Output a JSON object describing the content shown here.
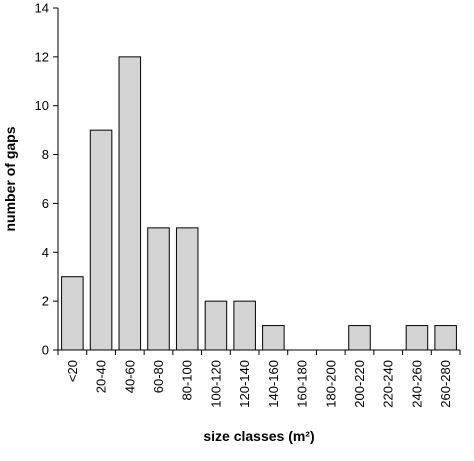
{
  "chart_data": {
    "type": "bar",
    "categories": [
      "<20",
      "20-40",
      "40-60",
      "60-80",
      "80-100",
      "100-120",
      "120-140",
      "140-160",
      "160-180",
      "180-200",
      "200-220",
      "220-240",
      "240-260",
      "260-280"
    ],
    "values": [
      3,
      9,
      12,
      5,
      5,
      2,
      2,
      1,
      0,
      0,
      1,
      0,
      1,
      1
    ],
    "xlabel": "size classes (m²)",
    "ylabel": "number of gaps",
    "ylim": [
      0,
      14
    ],
    "yticks": [
      0,
      2,
      4,
      6,
      8,
      10,
      12,
      14
    ],
    "grid": false,
    "bar_color": "#d4d4d4"
  }
}
